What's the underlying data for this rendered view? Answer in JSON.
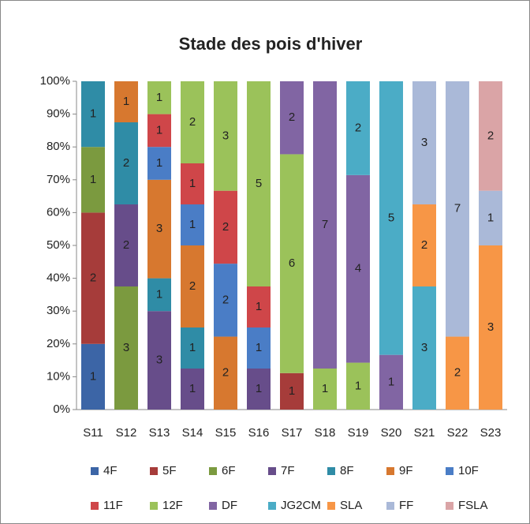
{
  "chart_data": {
    "type": "bar",
    "stack": "percent",
    "title": "Stade des pois d'hiver",
    "categories": [
      "S11",
      "S12",
      "S13",
      "S14",
      "S15",
      "S16",
      "S17",
      "S18",
      "S19",
      "S20",
      "S21",
      "S22",
      "S23"
    ],
    "ylim": [
      0,
      100
    ],
    "yticks": [
      {
        "value": 0,
        "label": "0%"
      },
      {
        "value": 10,
        "label": "10%"
      },
      {
        "value": 20,
        "label": "20%"
      },
      {
        "value": 30,
        "label": "30%"
      },
      {
        "value": 40,
        "label": "40%"
      },
      {
        "value": 50,
        "label": "50%"
      },
      {
        "value": 60,
        "label": "60%"
      },
      {
        "value": 70,
        "label": "70%"
      },
      {
        "value": 80,
        "label": "80%"
      },
      {
        "value": 90,
        "label": "90%"
      },
      {
        "value": 100,
        "label": "100%"
      }
    ],
    "series": [
      {
        "name": "4F",
        "color": "#3c65a6",
        "values": [
          1,
          0,
          0,
          0,
          0,
          0,
          0,
          0,
          0,
          0,
          0,
          0,
          0
        ]
      },
      {
        "name": "5F",
        "color": "#a63c3a",
        "values": [
          2,
          0,
          0,
          0,
          0,
          0,
          1,
          0,
          0,
          0,
          0,
          0,
          0
        ]
      },
      {
        "name": "6F",
        "color": "#7b9a3f",
        "values": [
          1,
          3,
          0,
          0,
          0,
          0,
          0,
          0,
          0,
          0,
          0,
          0,
          0
        ]
      },
      {
        "name": "7F",
        "color": "#674d8a",
        "values": [
          0,
          2,
          3,
          1,
          0,
          1,
          0,
          0,
          0,
          0,
          0,
          0,
          0
        ]
      },
      {
        "name": "8F",
        "color": "#2f8ca6",
        "values": [
          1,
          2,
          1,
          1,
          0,
          0,
          0,
          0,
          0,
          0,
          0,
          0,
          0
        ]
      },
      {
        "name": "9F",
        "color": "#d7782f",
        "values": [
          0,
          1,
          3,
          2,
          2,
          0,
          0,
          0,
          0,
          0,
          0,
          0,
          0
        ]
      },
      {
        "name": "10F",
        "color": "#4a7dc6",
        "values": [
          0,
          0,
          1,
          1,
          2,
          1,
          0,
          0,
          0,
          0,
          0,
          0,
          0
        ]
      },
      {
        "name": "11F",
        "color": "#cf4649",
        "values": [
          0,
          0,
          1,
          1,
          2,
          1,
          0,
          0,
          0,
          0,
          0,
          0,
          0
        ]
      },
      {
        "name": "12F",
        "color": "#9bc25a",
        "values": [
          0,
          0,
          1,
          2,
          3,
          5,
          6,
          1,
          1,
          0,
          0,
          0,
          0
        ]
      },
      {
        "name": "DF",
        "color": "#8165a3",
        "values": [
          0,
          0,
          0,
          0,
          0,
          0,
          2,
          7,
          4,
          1,
          0,
          0,
          0
        ]
      },
      {
        "name": "JG2CM",
        "color": "#4bacc6",
        "values": [
          0,
          0,
          0,
          0,
          0,
          0,
          0,
          0,
          2,
          5,
          3,
          0,
          0
        ]
      },
      {
        "name": "SLA",
        "color": "#f79646",
        "values": [
          0,
          0,
          0,
          0,
          0,
          0,
          0,
          0,
          0,
          0,
          2,
          2,
          3
        ]
      },
      {
        "name": "FF",
        "color": "#aab9d8",
        "values": [
          0,
          0,
          0,
          0,
          0,
          0,
          0,
          0,
          0,
          0,
          3,
          7,
          1
        ]
      },
      {
        "name": "FSLA",
        "color": "#daa4a6",
        "values": [
          0,
          0,
          0,
          0,
          0,
          0,
          0,
          0,
          0,
          0,
          0,
          0,
          2
        ]
      }
    ]
  }
}
